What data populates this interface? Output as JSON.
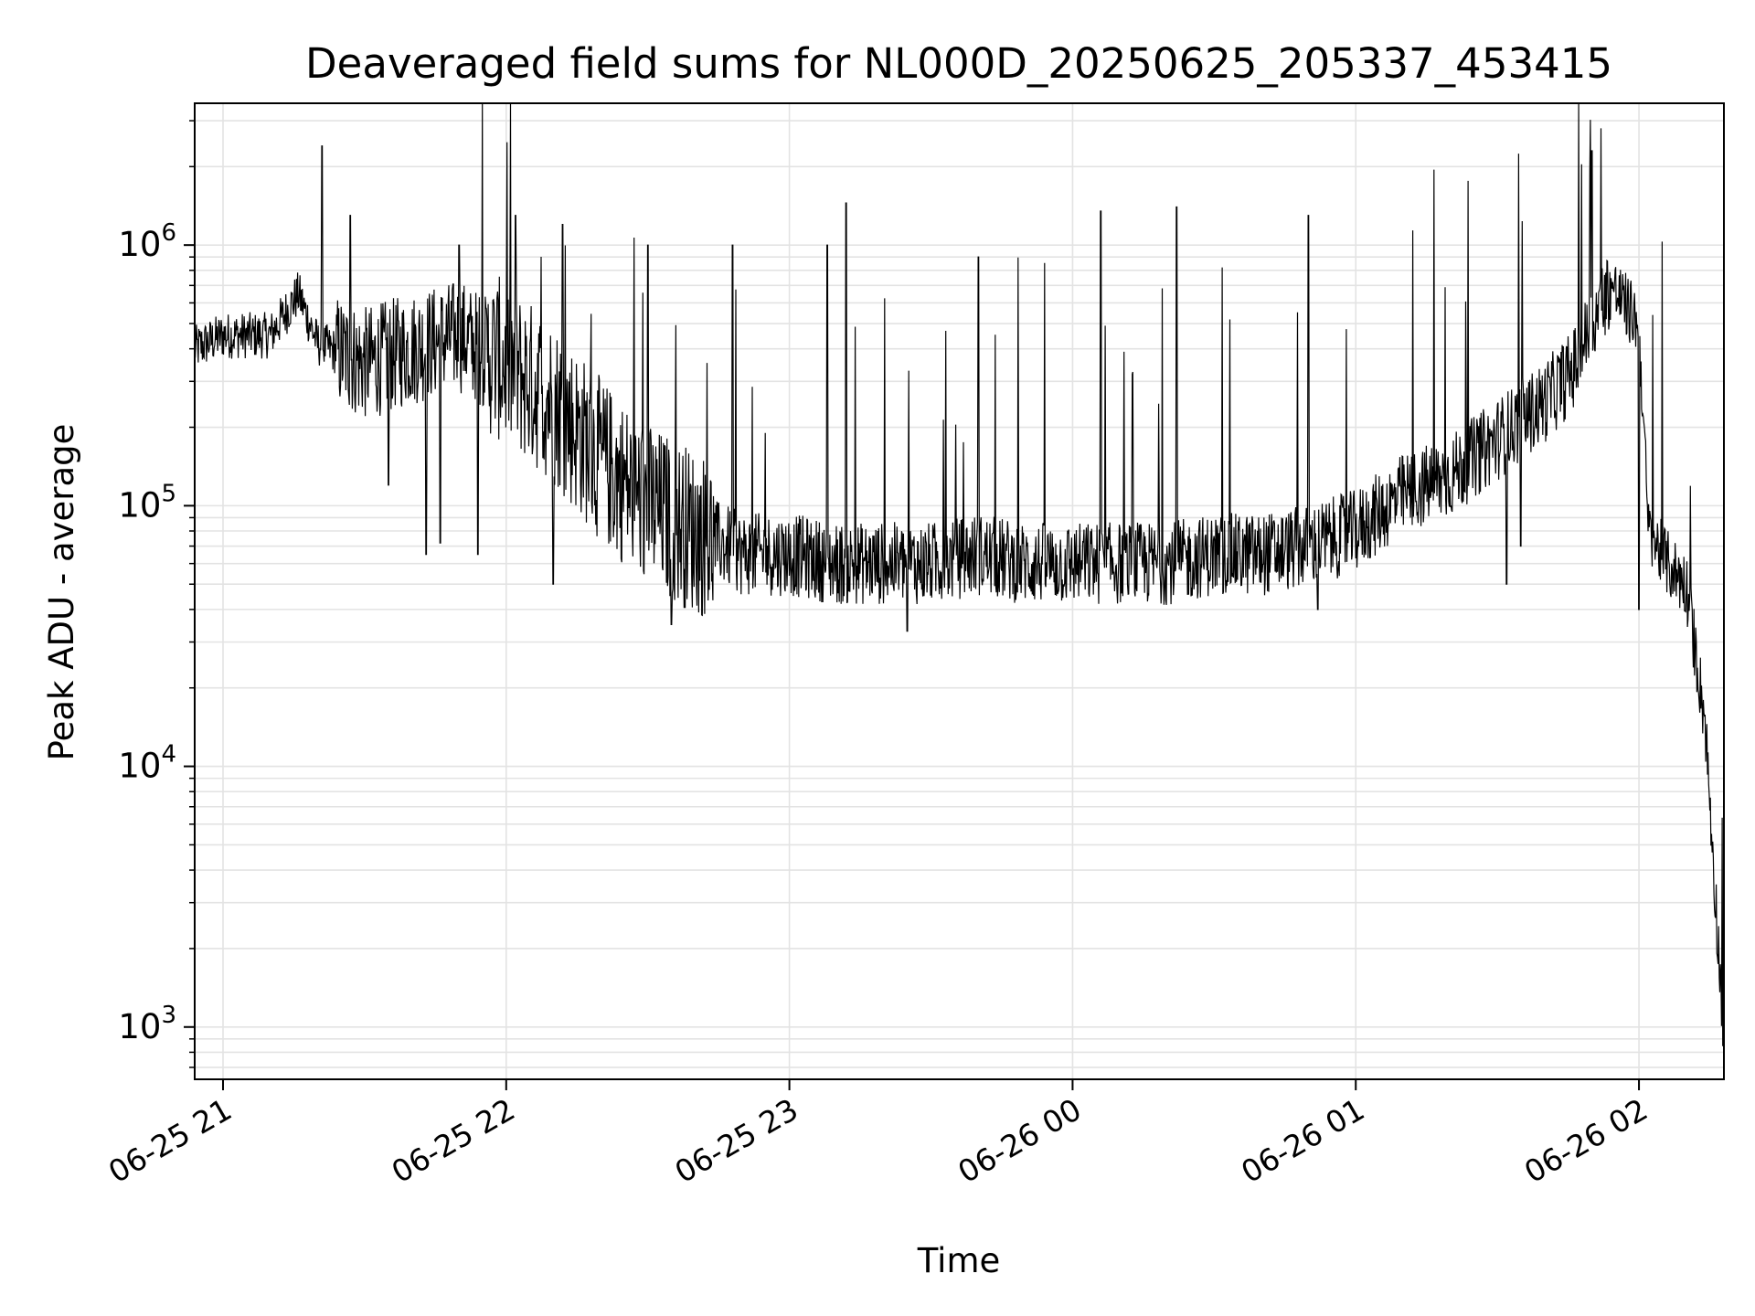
{
  "chart_data": {
    "type": "line",
    "title": "Deaveraged field sums for NL000D_20250625_205337_453415",
    "xlabel": "Time",
    "ylabel": "Peak ADU - average",
    "y_scale": "log",
    "ylim": [
      630,
      3500000
    ],
    "xlim": [
      "06-25 20:54",
      "06-26 02:18"
    ],
    "x_ticks": [
      "06-25 21",
      "06-25 22",
      "06-25 23",
      "06-26 00",
      "06-26 01",
      "06-26 02"
    ],
    "y_ticks": [
      {
        "value": 1000,
        "base": "10",
        "exp": "3"
      },
      {
        "value": 10000,
        "base": "10",
        "exp": "4"
      },
      {
        "value": 100000,
        "base": "10",
        "exp": "5"
      },
      {
        "value": 1000000,
        "base": "10",
        "exp": "6"
      }
    ],
    "grid": true,
    "line_color": "#000000",
    "series": [
      {
        "x": [
          "06-25 20:54",
          "06-25 21:00",
          "06-25 21:10",
          "06-25 21:16",
          "06-25 21:20",
          "06-25 21:30",
          "06-25 21:40",
          "06-25 21:50",
          "06-25 22:00",
          "06-25 22:10",
          "06-25 22:20",
          "06-25 22:30",
          "06-25 22:40",
          "06-25 22:50",
          "06-25 23:00",
          "06-25 23:10",
          "06-25 23:20",
          "06-25 23:30",
          "06-25 23:40",
          "06-25 23:50",
          "06-26 00:00",
          "06-26 00:10",
          "06-26 00:20",
          "06-26 00:30",
          "06-26 00:40",
          "06-26 00:50",
          "06-26 01:00",
          "06-26 01:10",
          "06-26 01:20",
          "06-26 01:30",
          "06-26 01:40",
          "06-26 01:46",
          "06-26 01:50",
          "06-26 01:54",
          "06-26 02:00",
          "06-26 02:02",
          "06-26 02:06",
          "06-26 02:10",
          "06-26 02:14",
          "06-26 02:18"
        ],
        "y": [
          400000,
          450000,
          450000,
          650000,
          420000,
          350000,
          400000,
          450000,
          350000,
          250000,
          150000,
          100000,
          80000,
          65000,
          65000,
          60000,
          60000,
          60000,
          65000,
          60000,
          60000,
          60000,
          60000,
          65000,
          65000,
          70000,
          80000,
          110000,
          130000,
          180000,
          250000,
          330000,
          500000,
          700000,
          500000,
          80000,
          60000,
          50000,
          15000,
          900
        ]
      }
    ],
    "spikes": [
      {
        "x": "06-25 21:21",
        "y": 2400000
      },
      {
        "x": "06-25 21:27",
        "y": 1300000
      },
      {
        "x": "06-25 21:50",
        "y": 1000000
      },
      {
        "x": "06-25 22:02",
        "y": 1300000
      },
      {
        "x": "06-25 22:12",
        "y": 1200000
      },
      {
        "x": "06-25 22:30",
        "y": 1000000
      },
      {
        "x": "06-25 22:48",
        "y": 1000000
      },
      {
        "x": "06-25 23:08",
        "y": 1000000
      },
      {
        "x": "06-25 23:12",
        "y": 1450000
      },
      {
        "x": "06-25 23:40",
        "y": 900000
      },
      {
        "x": "06-26 00:06",
        "y": 1350000
      },
      {
        "x": "06-26 00:22",
        "y": 1400000
      },
      {
        "x": "06-26 00:50",
        "y": 1300000
      },
      {
        "x": "06-26 01:50",
        "y": 2300000
      }
    ],
    "dips": [
      {
        "x": "06-25 21:35",
        "y": 120000
      },
      {
        "x": "06-25 21:43",
        "y": 65000
      },
      {
        "x": "06-25 21:46",
        "y": 72000
      },
      {
        "x": "06-25 21:54",
        "y": 65000
      },
      {
        "x": "06-25 22:10",
        "y": 50000
      },
      {
        "x": "06-25 22:35",
        "y": 35000
      },
      {
        "x": "06-25 23:25",
        "y": 33000
      },
      {
        "x": "06-26 00:52",
        "y": 40000
      },
      {
        "x": "06-26 01:32",
        "y": 50000
      },
      {
        "x": "06-26 01:35",
        "y": 70000
      },
      {
        "x": "06-26 02:00",
        "y": 40000
      }
    ]
  }
}
